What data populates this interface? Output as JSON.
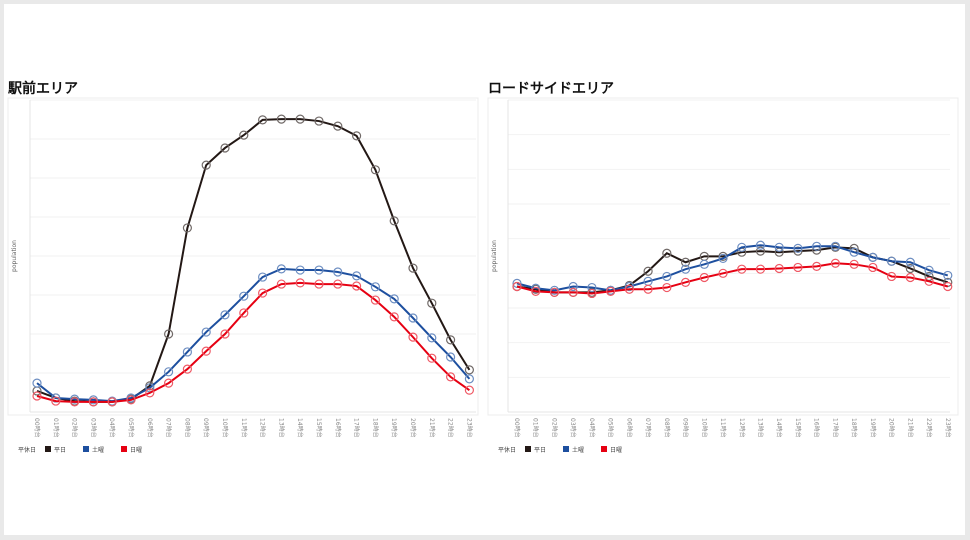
{
  "chart_data": [
    {
      "type": "line",
      "title": "駅前エリア",
      "ylabel": "population",
      "xlabel": "",
      "categories": [
        "00時台",
        "01時台",
        "02時台",
        "03時台",
        "04時台",
        "05時台",
        "06時台",
        "07時台",
        "08時台",
        "09時台",
        "10時台",
        "11時台",
        "12時台",
        "13時台",
        "14時台",
        "15時台",
        "16時台",
        "17時台",
        "18時台",
        "19時台",
        "20時台",
        "21時台",
        "22時台",
        "23時台"
      ],
      "ylim": [
        0,
        8
      ],
      "grid": true,
      "legend_title": "平休日",
      "legend_position": "bottom-left",
      "series": [
        {
          "name": "平日",
          "color": "#231815",
          "values": [
            0.54,
            0.36,
            0.28,
            0.26,
            0.26,
            0.33,
            0.67,
            2.0,
            4.72,
            6.33,
            6.77,
            7.1,
            7.49,
            7.51,
            7.51,
            7.46,
            7.33,
            7.08,
            6.21,
            4.9,
            3.69,
            2.79,
            1.85,
            1.08
          ]
        },
        {
          "name": "土曜",
          "color": "#1d4f9f",
          "values": [
            0.74,
            0.36,
            0.33,
            0.31,
            0.28,
            0.36,
            0.62,
            1.03,
            1.54,
            2.05,
            2.49,
            2.97,
            3.46,
            3.67,
            3.64,
            3.64,
            3.59,
            3.49,
            3.21,
            2.9,
            2.41,
            1.9,
            1.41,
            0.85
          ]
        },
        {
          "name": "日曜",
          "color": "#e60012",
          "values": [
            0.41,
            0.28,
            0.26,
            0.26,
            0.26,
            0.31,
            0.49,
            0.74,
            1.1,
            1.56,
            2.0,
            2.54,
            3.05,
            3.28,
            3.31,
            3.28,
            3.28,
            3.23,
            2.87,
            2.44,
            1.92,
            1.38,
            0.9,
            0.56
          ]
        }
      ]
    },
    {
      "type": "line",
      "title": "ロードサイドエリア",
      "ylabel": "population",
      "xlabel": "",
      "categories": [
        "00時台",
        "01時台",
        "02時台",
        "03時台",
        "04時台",
        "05時台",
        "06時台",
        "07時台",
        "08時台",
        "09時台",
        "10時台",
        "11時台",
        "12時台",
        "13時台",
        "14時台",
        "15時台",
        "16時台",
        "17時台",
        "18時台",
        "19時台",
        "20時台",
        "21時台",
        "22時台",
        "23時台"
      ],
      "ylim": [
        0,
        9
      ],
      "grid": true,
      "legend_title": "平休日",
      "legend_position": "bottom-left",
      "series": [
        {
          "name": "平日",
          "color": "#231815",
          "values": [
            3.62,
            3.54,
            3.45,
            3.45,
            3.45,
            3.51,
            3.65,
            4.06,
            4.58,
            4.32,
            4.49,
            4.49,
            4.61,
            4.64,
            4.61,
            4.64,
            4.67,
            4.75,
            4.72,
            4.46,
            4.35,
            4.14,
            3.91,
            3.74
          ]
        },
        {
          "name": "土曜",
          "color": "#1d4f9f",
          "values": [
            3.71,
            3.57,
            3.51,
            3.62,
            3.59,
            3.51,
            3.62,
            3.77,
            3.91,
            4.12,
            4.26,
            4.43,
            4.75,
            4.81,
            4.75,
            4.72,
            4.78,
            4.78,
            4.61,
            4.46,
            4.35,
            4.32,
            4.09,
            3.94
          ]
        },
        {
          "name": "日曜",
          "color": "#e60012",
          "values": [
            3.62,
            3.48,
            3.45,
            3.45,
            3.42,
            3.48,
            3.54,
            3.54,
            3.59,
            3.74,
            3.88,
            4.0,
            4.12,
            4.12,
            4.14,
            4.17,
            4.2,
            4.29,
            4.26,
            4.17,
            3.91,
            3.88,
            3.77,
            3.62
          ]
        }
      ]
    }
  ]
}
